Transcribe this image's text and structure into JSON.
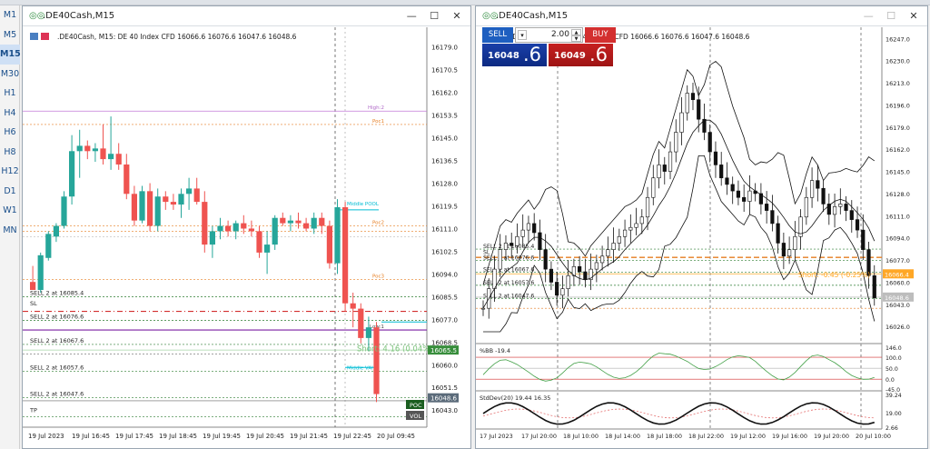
{
  "timeframes": [
    "M1",
    "M5",
    "M15",
    "M30",
    "H1",
    "H4",
    "H6",
    "H8",
    "H12",
    "D1",
    "W1",
    "MN"
  ],
  "active_timeframe": "M15",
  "left_window": {
    "title": ".DE40Cash,M15",
    "info": ".DE40Cash, M15:  DE 40 Index CFD  16066.6 16076.6 16047.6 16048.6",
    "price_axis": [
      "16179.0",
      "16170.5",
      "16162.0",
      "16153.5",
      "16145.0",
      "16136.5",
      "16128.0",
      "16119.5",
      "16111.0",
      "16102.5",
      "16094.0",
      "16085.5",
      "16077.0",
      "16068.5",
      "16060.0",
      "16051.5",
      "16043.0"
    ],
    "time_axis": [
      "19 Jul 2023",
      "19 Jul 16:45",
      "19 Jul 17:45",
      "19 Jul 18:45",
      "19 Jul 19:45",
      "19 Jul 20:45",
      "19 Jul 21:45",
      "19 Jul 22:45",
      "20 Jul 09:45"
    ],
    "level_labels": [
      "SELL 2 at 16085.4",
      "SL",
      "SELL 2 at 16076.6",
      "SELL 2 at 16067.6",
      "SELL 2 at 16057.6",
      "SELL 2 at 16047.6",
      "TP"
    ],
    "small_labels": [
      "High:2",
      "Poc1",
      "Poc2",
      "Poc3",
      "Middle POOL",
      "Low:1",
      "Middle VAH"
    ],
    "short_label": "Short: 4.16 (0.04%)",
    "current_price_tag": "16065.5",
    "bid_price_tag": "16048.6",
    "poc_button": "POC",
    "vol_button": "VOL",
    "candles": [
      [
        16091,
        16097,
        16088,
        16088
      ],
      [
        16088,
        16102,
        16087,
        16101
      ],
      [
        16100,
        16110,
        16099,
        16109
      ],
      [
        16108,
        16113,
        16106,
        16112
      ],
      [
        16112,
        16125,
        16111,
        16123
      ],
      [
        16123,
        16146,
        16120,
        16140
      ],
      [
        16140,
        16148,
        16130,
        16142
      ],
      [
        16142,
        16144,
        16137,
        16140
      ],
      [
        16140,
        16143,
        16136,
        16141
      ],
      [
        16141,
        16150,
        16135,
        16137
      ],
      [
        16137,
        16153,
        16133,
        16139
      ],
      [
        16139,
        16143,
        16133,
        16135
      ],
      [
        16135,
        16139,
        16122,
        16124
      ],
      [
        16124,
        16127,
        16112,
        16114
      ],
      [
        16114,
        16127,
        16113,
        16125
      ],
      [
        16125,
        16128,
        16110,
        16112
      ],
      [
        16112,
        16126,
        16110,
        16123
      ],
      [
        16123,
        16125,
        16118,
        16121
      ],
      [
        16121,
        16124,
        16118,
        16120
      ],
      [
        16120,
        16126,
        16115,
        16124
      ],
      [
        16124,
        16130,
        16118,
        16126
      ],
      [
        16126,
        16130,
        16120,
        16121
      ],
      [
        16121,
        16125,
        16102,
        16105
      ],
      [
        16105,
        16112,
        16100,
        16110
      ],
      [
        16110,
        16115,
        16107,
        16112
      ],
      [
        16112,
        16114,
        16108,
        16110
      ],
      [
        16110,
        16114,
        16107,
        16113
      ],
      [
        16113,
        16116,
        16109,
        16111
      ],
      [
        16111,
        16114,
        16108,
        16110
      ],
      [
        16110,
        16112,
        16100,
        16102
      ],
      [
        16102,
        16110,
        16094,
        16105
      ],
      [
        16105,
        16116,
        16103,
        16115
      ],
      [
        16115,
        16117,
        16112,
        16113
      ],
      [
        16113,
        16116,
        16110,
        16114
      ],
      [
        16114,
        16117,
        16111,
        16113
      ],
      [
        16113,
        16115,
        16110,
        16111
      ],
      [
        16111,
        16117,
        16109,
        16115
      ],
      [
        16115,
        16117,
        16109,
        16112
      ],
      [
        16112,
        16114,
        16096,
        16098
      ],
      [
        16098,
        16122,
        16094,
        16119
      ],
      [
        16119,
        16121,
        16080,
        16083
      ],
      [
        16083,
        16087,
        16074,
        16081
      ],
      [
        16081,
        16083,
        16068,
        16070
      ],
      [
        16070,
        16078,
        16065,
        16074
      ],
      [
        16074,
        16076,
        16046,
        16049
      ]
    ]
  },
  "right_window": {
    "title": ".DE40Cash,M15",
    "info": ".DE40Cash, M15:  DE 40 Index CFD  16066.6 16076.6 16047.6 16048.6",
    "sell_label": "SELL",
    "buy_label": "BUY",
    "lot_value": "2.00",
    "sell_price_small": "16048",
    "sell_price_big": ".6",
    "buy_price_small": "16049",
    "buy_price_big": ".6",
    "price_axis": [
      "16247.0",
      "16230.0",
      "16213.0",
      "16196.0",
      "16179.0",
      "16162.0",
      "16145.0",
      "16128.0",
      "16111.0",
      "16094.0",
      "16077.0",
      "16060.0",
      "16043.0",
      "16026.0"
    ],
    "time_axis": [
      "17 Jul 2023",
      "17 Jul 20:00",
      "18 Jul 10:00",
      "18 Jul 14:00",
      "18 Jul 18:00",
      "18 Jul 22:00",
      "19 Jul 12:00",
      "19 Jul 16:00",
      "19 Jul 20:00",
      "20 Jul 10:00"
    ],
    "level_labels": [
      "SELL 2 at 16085.4",
      "SL",
      "SELL 2 at 16076.6",
      "SELL 2 at 16067.6",
      "SELL 2 at 16057.6",
      "SELL 2 at 16047.6"
    ],
    "short_label": "Short: -0.45 (-0.25%)",
    "price_tag_orange": "16066.4",
    "price_tag_grey": "16048.6",
    "bb_label": "%BB -19.4",
    "bb_axis": [
      "146.0",
      "100.0",
      "50.0",
      "0.0",
      "-45.0"
    ],
    "std_label": "StdDev(20) 19.44 16.35",
    "std_axis": [
      "39.24",
      "19.00",
      "2.66"
    ]
  },
  "colors": {
    "bull": "#26a69a",
    "bear": "#ef5350",
    "sl_line": "#d32f2f",
    "grid_green": "#2e7d32",
    "grid_orange": "#e67e22",
    "cyan": "#00bcd4",
    "purple": "#7b1fa2"
  }
}
